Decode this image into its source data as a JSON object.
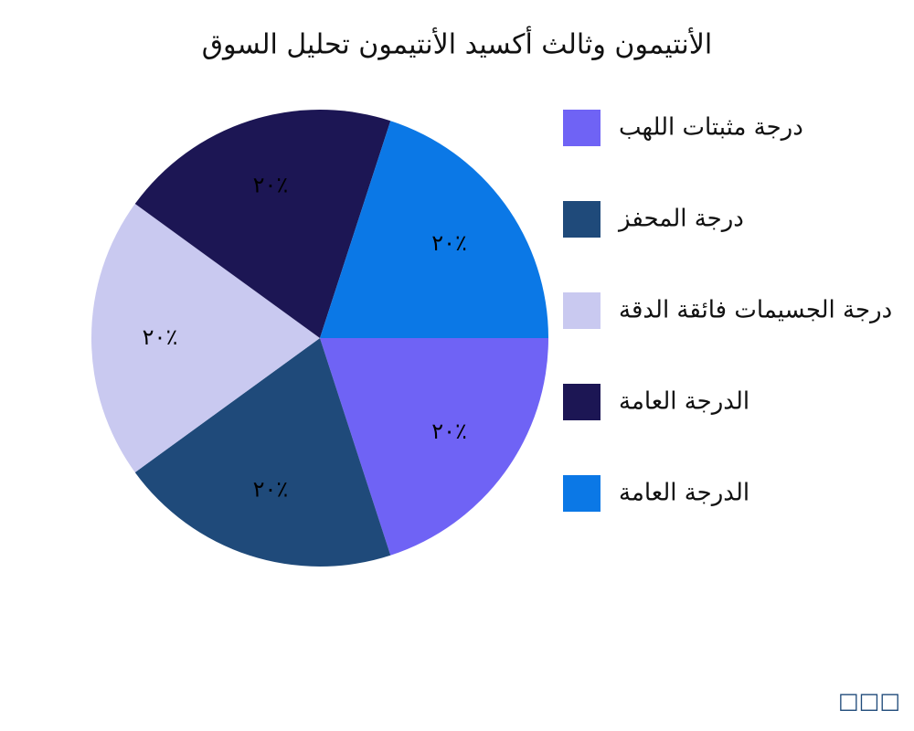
{
  "chart_data": {
    "type": "pie",
    "title": "الأنتيمون وثالث أكسيد الأنتيمون تحليل السوق",
    "categories": [
      "درجة مثبتات اللهب",
      "درجة المحفز",
      "درجة الجسيمات فائقة الدقة",
      "الدرجة العامة",
      "الدرجة العامة"
    ],
    "values": [
      20,
      20,
      20,
      20,
      20
    ],
    "value_labels": [
      "٢٠٪",
      "٢٠٪",
      "٢٠٪",
      "٢٠٪",
      "٢٠٪"
    ],
    "colors": [
      "#6f63f5",
      "#1f4a7a",
      "#c9c9f0",
      "#1c1654",
      "#0b78e6"
    ],
    "legend": "right",
    "watermark": "□□□"
  }
}
